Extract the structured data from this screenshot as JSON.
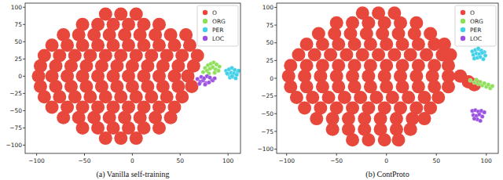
{
  "chart_data": [
    {
      "type": "scatter",
      "title": "(a) Vanilla self-training",
      "marker": "circle",
      "grid": false,
      "legend": "upper right",
      "xlim": [
        -112,
        113
      ],
      "ylim": [
        -112,
        106
      ],
      "xticks": [
        {
          "value": -100,
          "label": "−100"
        },
        {
          "value": -50,
          "label": "−50"
        },
        0,
        50,
        100
      ],
      "yticks": [
        {
          "value": -100,
          "label": "−100"
        },
        {
          "value": -75,
          "label": "−75"
        },
        {
          "value": -50,
          "label": "−50"
        },
        {
          "value": -25,
          "label": "−25"
        },
        0,
        25,
        50,
        75,
        100
      ],
      "series": [
        {
          "name": "O",
          "color": "#e8473b",
          "x": [
            -28,
            -12,
            4,
            -52,
            -36,
            -20,
            -4,
            12,
            28,
            -72,
            -56,
            -40,
            -24,
            -8,
            8,
            24,
            40,
            56,
            -84,
            -68,
            -52,
            -36,
            -20,
            -4,
            12,
            28,
            44,
            60,
            -92,
            -76,
            -60,
            -44,
            -28,
            -12,
            4,
            20,
            36,
            52,
            68,
            -96,
            -80,
            -64,
            -48,
            -32,
            -16,
            0,
            16,
            32,
            48,
            64,
            -98,
            -84,
            -68,
            -52,
            -36,
            -20,
            -4,
            12,
            28,
            44,
            58,
            -96,
            -80,
            -64,
            -48,
            -32,
            -16,
            0,
            16,
            32,
            48,
            62,
            -92,
            -76,
            -60,
            -44,
            -28,
            -12,
            4,
            20,
            36,
            52,
            -84,
            -68,
            -52,
            -36,
            -20,
            -4,
            12,
            28,
            44,
            -72,
            -56,
            -40,
            -24,
            -8,
            8,
            24,
            40,
            -52,
            -36,
            -20,
            -4,
            12,
            28,
            -28,
            -12,
            4
          ],
          "values": [
            90,
            90,
            90,
            75,
            75,
            75,
            75,
            75,
            75,
            60,
            60,
            60,
            60,
            60,
            60,
            60,
            60,
            60,
            45,
            45,
            45,
            45,
            45,
            45,
            45,
            45,
            45,
            45,
            30,
            30,
            30,
            30,
            30,
            30,
            30,
            30,
            30,
            30,
            30,
            15,
            15,
            15,
            15,
            15,
            15,
            15,
            15,
            15,
            15,
            15,
            0,
            0,
            0,
            0,
            0,
            0,
            0,
            0,
            0,
            0,
            0,
            -15,
            -15,
            -15,
            -15,
            -15,
            -15,
            -15,
            -15,
            -15,
            -15,
            -15,
            -30,
            -30,
            -30,
            -30,
            -30,
            -30,
            -30,
            -30,
            -30,
            -30,
            -45,
            -45,
            -45,
            -45,
            -45,
            -45,
            -45,
            -45,
            -45,
            -60,
            -60,
            -60,
            -60,
            -60,
            -60,
            -60,
            -60,
            -75,
            -75,
            -75,
            -75,
            -75,
            -75,
            -90,
            -90,
            -90
          ]
        },
        {
          "name": "ORG",
          "color": "#8ee05a",
          "x": [
            76,
            79,
            82,
            85,
            88,
            91,
            78,
            81,
            84,
            87,
            90,
            80,
            86,
            74
          ],
          "values": [
            12,
            16,
            18,
            20,
            17,
            14,
            8,
            11,
            13,
            10,
            8,
            4,
            5,
            6
          ]
        },
        {
          "name": "PER",
          "color": "#40d0e8",
          "x": [
            98,
            101,
            104,
            107,
            110,
            100,
            103,
            106,
            109,
            102,
            105,
            108,
            104,
            99,
            111
          ],
          "values": [
            8,
            10,
            12,
            9,
            6,
            3,
            5,
            4,
            2,
            -2,
            -1,
            -3,
            0,
            4,
            8
          ]
        },
        {
          "name": "LOC",
          "color": "#9b50e0",
          "x": [
            68,
            71,
            74,
            77,
            80,
            83,
            72,
            75,
            78,
            81,
            84,
            70,
            76,
            86
          ],
          "values": [
            -4,
            -8,
            -6,
            -10,
            -9,
            -5,
            -1,
            -3,
            0,
            -2,
            -6,
            -11,
            -12,
            -3
          ]
        }
      ]
    },
    {
      "type": "scatter",
      "title": "(b) ContProto",
      "marker": "circle",
      "grid": false,
      "legend": "upper right",
      "xlim": [
        -110,
        112
      ],
      "ylim": [
        -106,
        106
      ],
      "xticks": [
        {
          "value": -100,
          "label": "−100"
        },
        {
          "value": -50,
          "label": "−50"
        },
        0,
        50,
        100
      ],
      "yticks": [
        {
          "value": -100,
          "label": "−100"
        },
        {
          "value": -75,
          "label": "−75"
        },
        {
          "value": -50,
          "label": "−50"
        },
        {
          "value": -25,
          "label": "−25"
        },
        0,
        25,
        50,
        75,
        100
      ],
      "series": [
        {
          "name": "O",
          "color": "#e8473b",
          "x": [
            -24,
            -8,
            8,
            -50,
            -34,
            -18,
            -2,
            14,
            30,
            -68,
            -52,
            -36,
            -20,
            -4,
            12,
            28,
            44,
            -80,
            -64,
            -48,
            -32,
            -16,
            0,
            16,
            32,
            48,
            58,
            -88,
            -72,
            -56,
            -40,
            -24,
            -8,
            8,
            24,
            40,
            56,
            64,
            -96,
            -80,
            -64,
            -48,
            -32,
            -16,
            0,
            16,
            32,
            48,
            62,
            -98,
            -82,
            -66,
            -50,
            -34,
            -18,
            -2,
            14,
            30,
            46,
            62,
            74,
            -96,
            -80,
            -64,
            -48,
            -32,
            -16,
            0,
            16,
            32,
            48,
            62,
            -90,
            -74,
            -58,
            -42,
            -26,
            -10,
            6,
            22,
            38,
            52,
            -82,
            -66,
            -50,
            -34,
            -18,
            -2,
            14,
            30,
            44,
            -70,
            -54,
            -38,
            -22,
            -6,
            10,
            26,
            38,
            -54,
            -38,
            -22,
            -6,
            10,
            24,
            -34,
            -18,
            -2,
            12,
            82,
            88
          ],
          "values": [
            92,
            92,
            92,
            78,
            78,
            78,
            78,
            78,
            78,
            63,
            63,
            63,
            63,
            63,
            63,
            63,
            63,
            48,
            48,
            48,
            48,
            48,
            48,
            48,
            48,
            48,
            48,
            33,
            33,
            33,
            33,
            33,
            33,
            33,
            33,
            33,
            33,
            33,
            18,
            18,
            18,
            18,
            18,
            18,
            18,
            18,
            18,
            18,
            18,
            3,
            3,
            3,
            3,
            3,
            3,
            3,
            3,
            3,
            3,
            3,
            3,
            -12,
            -12,
            -12,
            -12,
            -12,
            -12,
            -12,
            -12,
            -12,
            -12,
            -12,
            -27,
            -27,
            -27,
            -27,
            -27,
            -27,
            -27,
            -27,
            -27,
            -27,
            -42,
            -42,
            -42,
            -42,
            -42,
            -42,
            -42,
            -42,
            -42,
            -57,
            -57,
            -57,
            -57,
            -57,
            -57,
            -57,
            -57,
            -72,
            -72,
            -72,
            -72,
            -72,
            -72,
            -87,
            -87,
            -87,
            -87,
            -5,
            -9
          ]
        },
        {
          "name": "ORG",
          "color": "#8ee05a",
          "x": [
            84,
            88,
            92,
            96,
            100,
            104,
            90,
            94,
            98,
            102,
            106
          ],
          "values": [
            -3,
            -6,
            -8,
            -10,
            -12,
            -14,
            -2,
            -5,
            -7,
            -9,
            -11
          ]
        },
        {
          "name": "PER",
          "color": "#40d0e8",
          "x": [
            86,
            89,
            92,
            95,
            98,
            87,
            90,
            93,
            96,
            99,
            88,
            91,
            94,
            97,
            92
          ],
          "values": [
            38,
            40,
            41,
            39,
            37,
            33,
            35,
            34,
            36,
            32,
            28,
            29,
            30,
            27,
            42
          ]
        },
        {
          "name": "LOC",
          "color": "#9b50e0",
          "x": [
            86,
            89,
            92,
            95,
            98,
            87,
            90,
            93,
            96,
            91,
            94,
            88
          ],
          "values": [
            -46,
            -45,
            -47,
            -46,
            -48,
            -52,
            -53,
            -51,
            -54,
            -58,
            -60,
            -57
          ]
        }
      ]
    }
  ]
}
